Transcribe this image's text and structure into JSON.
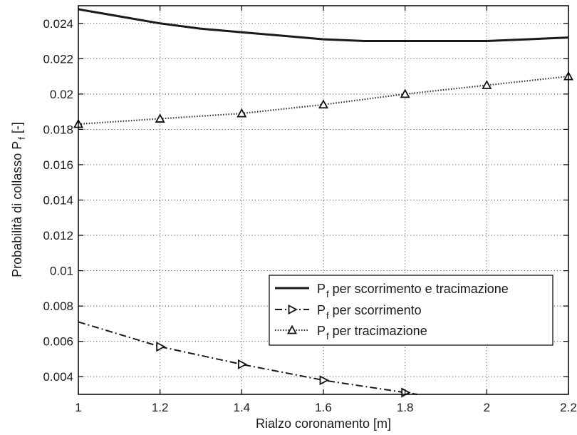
{
  "chart_data": {
    "type": "line",
    "xlabel": "Rialzo coronamento [m]",
    "ylabel_main": "Probabilità di collasso P",
    "ylabel_sub": "f",
    "ylabel_unit": " [-]",
    "xlim": [
      1,
      2.2
    ],
    "ylim": [
      0.003,
      0.025
    ],
    "x_ticks": [
      1,
      1.2,
      1.4,
      1.6,
      1.8,
      2,
      2.2
    ],
    "x_tick_labels": [
      "1",
      "1.2",
      "1.4",
      "1.6",
      "1.8",
      "2",
      "2.2"
    ],
    "y_ticks": [
      0.004,
      0.006,
      0.008,
      0.01,
      0.012,
      0.014,
      0.016,
      0.018,
      0.02,
      0.022,
      0.024
    ],
    "y_tick_labels": [
      "0.004",
      "0.006",
      "0.008",
      "0.01",
      "0.012",
      "0.014",
      "0.016",
      "0.018",
      "0.02",
      "0.022",
      "0.024"
    ],
    "grid": true,
    "legend_position": "lower-right",
    "series": [
      {
        "name_main": "P",
        "name_sub": "f",
        "name_rest": " per scorrimento e tracimazione",
        "style": "solid",
        "marker": "none",
        "x": [
          1.0,
          1.1,
          1.2,
          1.3,
          1.4,
          1.5,
          1.6,
          1.7,
          1.8,
          1.9,
          2.0,
          2.1,
          2.2
        ],
        "y": [
          0.0248,
          0.0244,
          0.024,
          0.0237,
          0.0235,
          0.0233,
          0.0231,
          0.023,
          0.023,
          0.023,
          0.023,
          0.0231,
          0.0232
        ]
      },
      {
        "name_main": "P",
        "name_sub": "f",
        "name_rest": " per scorrimento",
        "style": "dashdot",
        "marker": "triangle-right",
        "x": [
          1.0,
          1.2,
          1.4,
          1.6,
          1.8,
          1.83
        ],
        "y": [
          0.0071,
          0.0057,
          0.0047,
          0.0038,
          0.0031,
          0.003
        ],
        "marker_x": [
          1.2,
          1.4,
          1.6,
          1.8
        ],
        "marker_y": [
          0.0057,
          0.0047,
          0.0038,
          0.0031
        ]
      },
      {
        "name_main": "P",
        "name_sub": "f",
        "name_rest": " per tracimazione",
        "style": "dotted",
        "marker": "triangle-up",
        "x": [
          1.0,
          1.2,
          1.4,
          1.6,
          1.8,
          2.0,
          2.2
        ],
        "y": [
          0.0183,
          0.0186,
          0.0189,
          0.0194,
          0.02,
          0.0205,
          0.021
        ],
        "marker_x": [
          1.0,
          1.2,
          1.4,
          1.6,
          1.8,
          2.0,
          2.2
        ],
        "marker_y": [
          0.0183,
          0.0186,
          0.0189,
          0.0194,
          0.02,
          0.0205,
          0.021
        ]
      }
    ]
  }
}
